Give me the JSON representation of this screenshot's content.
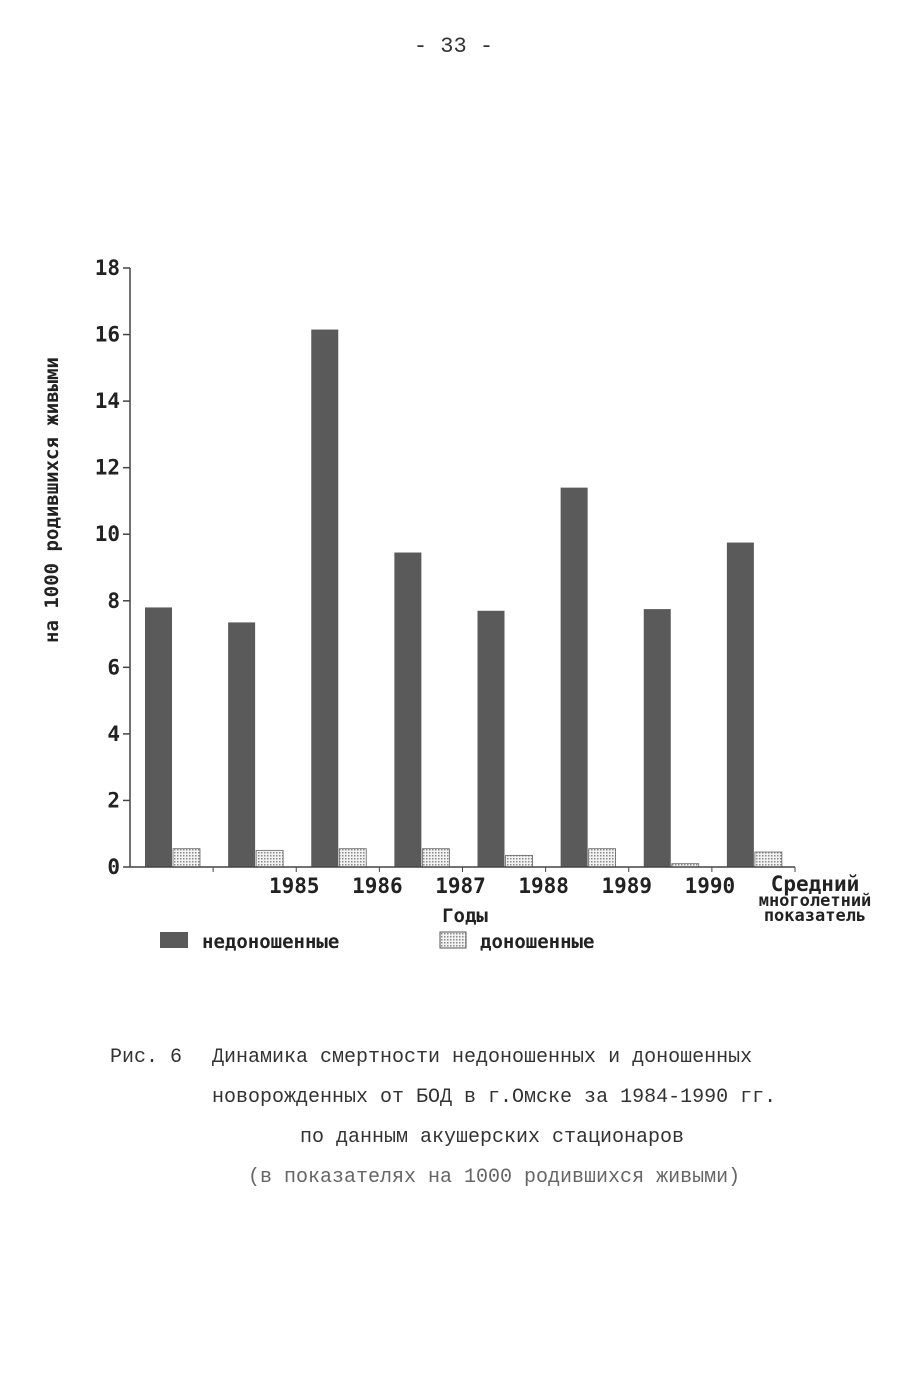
{
  "page_number": "- 33 -",
  "colors": {
    "preterm": "#5a5a5a",
    "term": "#d2d2d2",
    "axis": "#444444"
  },
  "chart_data": {
    "type": "bar",
    "title": "",
    "ylabel": "на 1000 родившихся живыми",
    "xlabel": "Годы",
    "ylim": [
      0,
      18
    ],
    "yticks": [
      "0",
      "2",
      "4",
      "6",
      "8",
      "10",
      "12",
      "14",
      "16",
      "18"
    ],
    "categories": [
      "",
      "1985",
      "1986",
      "1987",
      "1988",
      "1989",
      "1990",
      "Средний многолетний показатель"
    ],
    "category_lines": [
      [
        ""
      ],
      [
        "1985"
      ],
      [
        "1986"
      ],
      [
        "1987"
      ],
      [
        "1988"
      ],
      [
        "1989"
      ],
      [
        "1990"
      ],
      [
        "Средний",
        "многолетний",
        "показатель"
      ]
    ],
    "series": [
      {
        "name": "недоношенные",
        "values": [
          7.8,
          7.35,
          16.15,
          9.45,
          7.7,
          11.4,
          7.75,
          9.75
        ]
      },
      {
        "name": "доношенные",
        "values": [
          0.55,
          0.5,
          0.55,
          0.55,
          0.35,
          0.55,
          0.1,
          0.45
        ]
      }
    ],
    "legend_position": "bottom"
  },
  "caption": {
    "label": "Рис. 6",
    "line1": "Динамика смертности  недоношенных и доношенных",
    "line2": "новорожденных от БОД в г.Омске за 1984-1990 гг.",
    "line3": "по данным акушерских стационаров",
    "line4": "(в показателях на 1000 родившихся живыми)"
  }
}
